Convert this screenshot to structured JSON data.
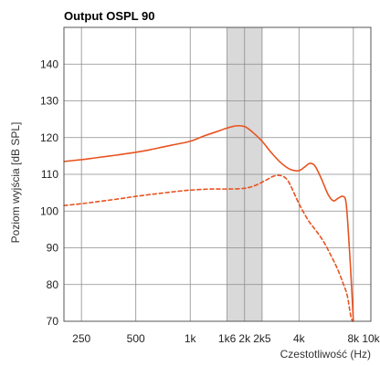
{
  "chart_data": {
    "type": "line",
    "title": "Output OSPL 90",
    "xlabel": "Czestotliwość (Hz)",
    "ylabel": "Poziom wyjścia [dB SPL]",
    "x_scale": "log",
    "xlim": [
      200,
      10000
    ],
    "ylim": [
      70,
      150
    ],
    "x_ticks": [
      {
        "value": 250,
        "label": "250"
      },
      {
        "value": 500,
        "label": "500"
      },
      {
        "value": 1000,
        "label": "1k"
      },
      {
        "value": 1600,
        "label": "1k6"
      },
      {
        "value": 2000,
        "label": "2k"
      },
      {
        "value": 2500,
        "label": "2k5"
      },
      {
        "value": 4000,
        "label": "4k"
      },
      {
        "value": 8000,
        "label": "8k"
      },
      {
        "value": 10000,
        "label": "10k"
      }
    ],
    "y_ticks": [
      {
        "value": 70,
        "label": "70"
      },
      {
        "value": 80,
        "label": "80"
      },
      {
        "value": 90,
        "label": "90"
      },
      {
        "value": 100,
        "label": "100"
      },
      {
        "value": 110,
        "label": "110"
      },
      {
        "value": 120,
        "label": "120"
      },
      {
        "value": 130,
        "label": "130"
      },
      {
        "value": 140,
        "label": "140"
      }
    ],
    "grid": true,
    "highlight_band": {
      "x_from": 1600,
      "x_to": 2500,
      "color": "#d9d9d9"
    },
    "series": [
      {
        "style": "solid",
        "color": "#e8531f",
        "points": [
          [
            200,
            113.5
          ],
          [
            250,
            114
          ],
          [
            300,
            114.5
          ],
          [
            400,
            115.3
          ],
          [
            500,
            116
          ],
          [
            600,
            116.7
          ],
          [
            700,
            117.4
          ],
          [
            800,
            118
          ],
          [
            1000,
            119
          ],
          [
            1200,
            120.5
          ],
          [
            1400,
            121.6
          ],
          [
            1600,
            122.6
          ],
          [
            1800,
            123.2
          ],
          [
            2000,
            123
          ],
          [
            2200,
            121.6
          ],
          [
            2500,
            119
          ],
          [
            2800,
            116
          ],
          [
            3200,
            113
          ],
          [
            3600,
            111.3
          ],
          [
            4000,
            111
          ],
          [
            4300,
            112
          ],
          [
            4600,
            113
          ],
          [
            4900,
            112.3
          ],
          [
            5300,
            109
          ],
          [
            5800,
            104.5
          ],
          [
            6200,
            102.8
          ],
          [
            6600,
            103.5
          ],
          [
            7000,
            104
          ],
          [
            7300,
            102
          ],
          [
            7600,
            90
          ],
          [
            7850,
            78
          ],
          [
            8000,
            70
          ]
        ]
      },
      {
        "style": "dashed",
        "color": "#e8531f",
        "points": [
          [
            200,
            101.5
          ],
          [
            250,
            102
          ],
          [
            300,
            102.5
          ],
          [
            400,
            103.3
          ],
          [
            500,
            104
          ],
          [
            700,
            104.9
          ],
          [
            900,
            105.5
          ],
          [
            1000,
            105.7
          ],
          [
            1300,
            106
          ],
          [
            1600,
            106
          ],
          [
            2000,
            106.2
          ],
          [
            2300,
            107
          ],
          [
            2600,
            108.3
          ],
          [
            2900,
            109.5
          ],
          [
            3200,
            109.6
          ],
          [
            3500,
            108
          ],
          [
            4000,
            102
          ],
          [
            4500,
            97.5
          ],
          [
            5000,
            94.5
          ],
          [
            5500,
            91.5
          ],
          [
            6000,
            88
          ],
          [
            6500,
            84.5
          ],
          [
            7000,
            80.5
          ],
          [
            7400,
            77
          ],
          [
            7700,
            72
          ],
          [
            7900,
            70
          ]
        ]
      }
    ]
  }
}
